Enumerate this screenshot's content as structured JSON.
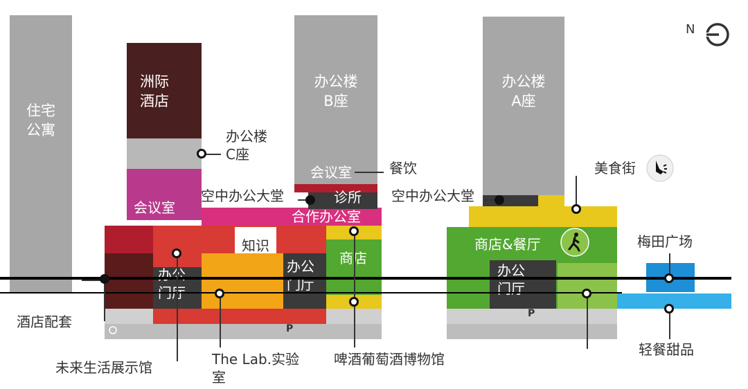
{
  "north": {
    "label": "N"
  },
  "towers": {
    "residential": "住宅\n公寓",
    "intercontinental": "洲际\n酒店",
    "office_b": "办公楼\nB座",
    "office_a": "办公楼\nA座"
  },
  "labels": {
    "office_c": "办公楼\nC座",
    "meeting_left": "会议室",
    "meeting_b": "会议室",
    "dining": "餐饮",
    "sky_lobby_left": "空中办公大堂",
    "clinic": "诊所",
    "sky_lobby_right": "空中办公大堂",
    "food_street": "美食街",
    "cowork": "合作办公室",
    "knowledge": "知识\n之都",
    "office_lobby_1": "办公\n门厅",
    "office_lobby_2": "办公\n门厅",
    "office_lobby_3": "办公\n门厅",
    "shop": "商店",
    "shop_dining": "商店&餐厅",
    "meitian_plaza": "梅田广场",
    "hotel_support": "酒店配套",
    "future_living": "未来生活展示馆",
    "the_lab": "The Lab.实验\n室",
    "beer_wine": "啤酒葡萄酒博物馆",
    "light_dessert": "轻餐甜品",
    "basement_p1": "P",
    "basement_p2": "P"
  },
  "colors": {
    "tower_grey": "#a7a7a7",
    "hotel_dark": "#4a1f1f",
    "magenta": "#b93a8c",
    "pink": "#d8307e",
    "crimson": "#b01e2e",
    "red": "#d83a34",
    "orange": "#f2a517",
    "yellow": "#e8c81c",
    "green": "#52a830",
    "lime": "#8bc34a",
    "dark_grey": "#3a3a3a",
    "blue": "#1d8fd6",
    "light_blue": "#35b0e8"
  },
  "icons": [
    "power-compass-icon",
    "dining-icon",
    "walking-person-icon",
    "parking-icon"
  ]
}
